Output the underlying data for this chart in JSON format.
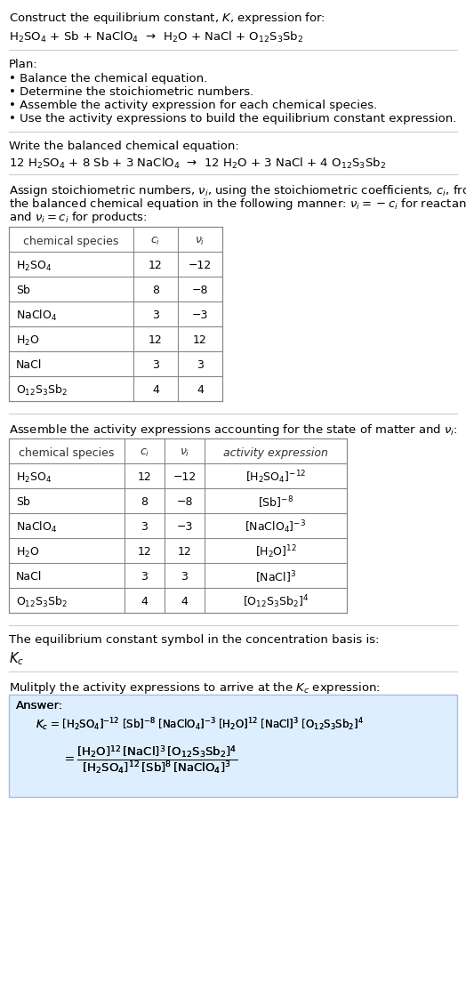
{
  "title_line1": "Construct the equilibrium constant, $K$, expression for:",
  "reaction_unbalanced": "H$_2$SO$_4$ + Sb + NaClO$_4$  →  H$_2$O + NaCl + O$_{12}$S$_3$Sb$_2$",
  "plan_header": "Plan:",
  "plan_items": [
    "• Balance the chemical equation.",
    "• Determine the stoichiometric numbers.",
    "• Assemble the activity expression for each chemical species.",
    "• Use the activity expressions to build the equilibrium constant expression."
  ],
  "balanced_header": "Write the balanced chemical equation:",
  "reaction_balanced": "12 H$_2$SO$_4$ + 8 Sb + 3 NaClO$_4$  →  12 H$_2$O + 3 NaCl + 4 O$_{12}$S$_3$Sb$_2$",
  "stoich_header": "Assign stoichiometric numbers, $\\nu_i$, using the stoichiometric coefficients, $c_i$, from\nthe balanced chemical equation in the following manner: $\\nu_i = -c_i$ for reactants\nand $\\nu_i = c_i$ for products:",
  "table1_headers": [
    "chemical species",
    "$c_i$",
    "$\\nu_i$"
  ],
  "table1_rows": [
    [
      "H$_2$SO$_4$",
      "12",
      "−12"
    ],
    [
      "Sb",
      "8",
      "−8"
    ],
    [
      "NaClO$_4$",
      "3",
      "−3"
    ],
    [
      "H$_2$O",
      "12",
      "12"
    ],
    [
      "NaCl",
      "3",
      "3"
    ],
    [
      "O$_{12}$S$_3$Sb$_2$",
      "4",
      "4"
    ]
  ],
  "activity_header": "Assemble the activity expressions accounting for the state of matter and $\\nu_i$:",
  "table2_headers": [
    "chemical species",
    "$c_i$",
    "$\\nu_i$",
    "activity expression"
  ],
  "table2_rows": [
    [
      "H$_2$SO$_4$",
      "12",
      "−12",
      "[H$_2$SO$_4$]$^{-12}$"
    ],
    [
      "Sb",
      "8",
      "−8",
      "[Sb]$^{-8}$"
    ],
    [
      "NaClO$_4$",
      "3",
      "−3",
      "[NaClO$_4$]$^{-3}$"
    ],
    [
      "H$_2$O",
      "12",
      "12",
      "[H$_2$O]$^{12}$"
    ],
    [
      "NaCl",
      "3",
      "3",
      "[NaCl]$^3$"
    ],
    [
      "O$_{12}$S$_3$Sb$_2$",
      "4",
      "4",
      "[O$_{12}$S$_3$Sb$_2$]$^4$"
    ]
  ],
  "kc_header": "The equilibrium constant symbol in the concentration basis is:",
  "kc_symbol": "$K_c$",
  "multiply_header": "Mulitply the activity expressions to arrive at the $K_c$ expression:",
  "answer_label": "Answer:",
  "answer_line1": "$K_c$ = [H$_2$SO$_4$]$^{-12}$ [Sb]$^{-8}$ [NaClO$_4$]$^{-3}$ [H$_2$O]$^{12}$ [NaCl]$^3$ [O$_{12}$S$_3$Sb$_2$]$^4$",
  "answer_line2": "     = $\\dfrac{\\text{[H}_2\\text{O]}^{12}\\text{ [NaCl]}^3\\text{ [O}_{12}\\text{S}_3\\text{Sb}_2\\text{]}^4}{\\text{[H}_2\\text{SO}_4\\text{]}^{12}\\text{ [Sb]}^8\\text{ [NaClO}_4\\text{]}^3}$",
  "bg_color": "#ffffff",
  "table_border_color": "#999999",
  "answer_box_color": "#ddeeff",
  "answer_box_border": "#aabbcc",
  "text_color": "#000000",
  "font_size": 9.5,
  "header_font_size": 9.5
}
